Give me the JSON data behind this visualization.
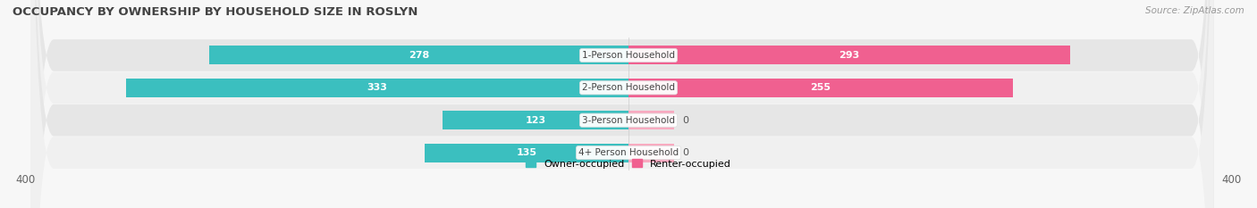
{
  "title": "OCCUPANCY BY OWNERSHIP BY HOUSEHOLD SIZE IN ROSLYN",
  "source": "Source: ZipAtlas.com",
  "categories": [
    "1-Person Household",
    "2-Person Household",
    "3-Person Household",
    "4+ Person Household"
  ],
  "owner_values": [
    278,
    333,
    123,
    135
  ],
  "renter_values": [
    293,
    255,
    0,
    0
  ],
  "renter_stub": [
    0,
    0,
    30,
    30
  ],
  "owner_color": "#3bbfbf",
  "renter_color_large": "#f06090",
  "renter_color_small": "#f8aac0",
  "row_bg_light": "#f0f0f0",
  "row_bg_dark": "#e6e6e6",
  "fig_bg": "#f7f7f7",
  "x_max": 400,
  "bar_height": 0.58,
  "title_fontsize": 9.5,
  "label_fontsize": 8,
  "value_fontsize": 8,
  "tick_fontsize": 8.5,
  "legend_fontsize": 8,
  "source_fontsize": 7.5
}
